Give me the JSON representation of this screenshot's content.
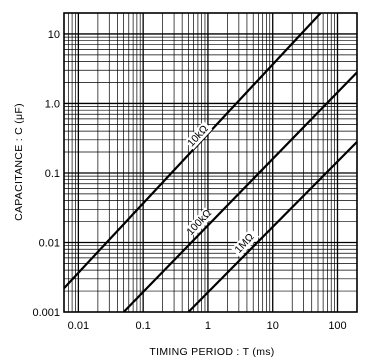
{
  "chart_data": {
    "type": "line",
    "title": "",
    "xlabel": "TIMING PERIOD : T (ms)",
    "ylabel": "CAPACITANCE : C (μF)",
    "x_scale": "log",
    "y_scale": "log",
    "xlim": [
      0.006,
      200
    ],
    "ylim": [
      0.001,
      20
    ],
    "x_ticks": [
      0.01,
      0.1,
      1,
      10,
      100
    ],
    "x_tick_labels": [
      "0.01",
      "0.1",
      "1",
      "10",
      "100"
    ],
    "y_ticks": [
      0.001,
      0.01,
      0.1,
      1,
      10
    ],
    "y_tick_labels": [
      "0.001",
      "0.01",
      "0.1",
      "1.0",
      "10"
    ],
    "grid": true,
    "series": [
      {
        "name": "10kΩ",
        "x": [
          0.006,
          55
        ],
        "y": [
          0.0022,
          20
        ]
      },
      {
        "name": "100kΩ",
        "x": [
          0.05,
          200
        ],
        "y": [
          0.001,
          2.8
        ]
      },
      {
        "name": "1MΩ",
        "x": [
          0.5,
          200
        ],
        "y": [
          0.001,
          0.28
        ]
      }
    ]
  }
}
